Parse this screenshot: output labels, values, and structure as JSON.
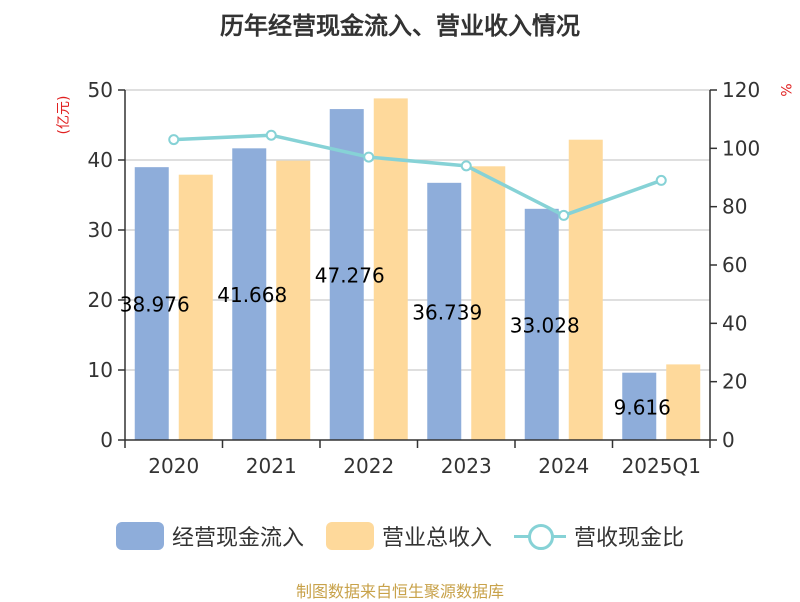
{
  "colors": {
    "cash_inflow": "#8eadda",
    "revenue": "#fed99b",
    "ratio_line": "#86d2d6",
    "unit_red": "#e02020",
    "grid": "#cccccc",
    "axis": "#333333",
    "source": "#c8a24a"
  },
  "chart_data": {
    "type": "bar",
    "title": "历年经营现金流入、营业收入情况",
    "categories": [
      "2020",
      "2021",
      "2022",
      "2023",
      "2024",
      "2025Q1"
    ],
    "y_left": {
      "unit": "(亿元)",
      "ylim": [
        0,
        50
      ],
      "ticks": [
        0,
        10,
        20,
        30,
        40,
        50
      ]
    },
    "y_right": {
      "unit": "%",
      "ylim": [
        0,
        120
      ],
      "ticks": [
        0,
        20,
        40,
        60,
        80,
        100,
        120
      ]
    },
    "grid": true,
    "legend_position": "bottom",
    "series": [
      {
        "name": "经营现金流入",
        "type": "bar",
        "axis": "left",
        "values": [
          38.976,
          41.668,
          47.276,
          36.739,
          33.028,
          9.616
        ],
        "labels": [
          "38.976",
          "41.668",
          "47.276",
          "36.739",
          "33.028",
          "9.616"
        ]
      },
      {
        "name": "营业总收入",
        "type": "bar",
        "axis": "left",
        "values": [
          37.9,
          39.9,
          48.8,
          39.1,
          42.9,
          10.8
        ]
      },
      {
        "name": "营收现金比",
        "type": "line",
        "axis": "right",
        "values": [
          103,
          104.5,
          97,
          94,
          77,
          89
        ]
      }
    ]
  },
  "source_note": "制图数据来自恒生聚源数据库"
}
